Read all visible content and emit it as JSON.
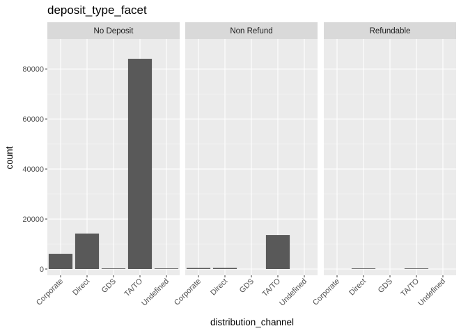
{
  "chart_data": {
    "type": "bar",
    "title": "deposit_type_facet",
    "xlabel": "distribution_channel",
    "ylabel": "count",
    "facet_variable": "deposit_type",
    "categories": [
      "Corporate",
      "Direct",
      "GDS",
      "TA/TO",
      "Undefined"
    ],
    "ylim": [
      -2500,
      92000
    ],
    "yticks": [
      0,
      20000,
      40000,
      60000,
      80000
    ],
    "ytick_labels": [
      "0",
      "20000",
      "40000",
      "60000",
      "80000"
    ],
    "grid": true,
    "facets": [
      {
        "name": "No Deposit",
        "values": [
          6100,
          14200,
          190,
          84000,
          1
        ]
      },
      {
        "name": "Non Refund",
        "values": [
          430,
          450,
          0,
          13600,
          0
        ]
      },
      {
        "name": "Refundable",
        "values": [
          0,
          160,
          0,
          5,
          0
        ]
      }
    ],
    "colors": {
      "bar": "#595959",
      "panel_bg": "#ebebeb",
      "strip_bg": "#d9d9d9",
      "grid_major": "#ffffff",
      "grid_minor": "#f5f5f5"
    }
  }
}
